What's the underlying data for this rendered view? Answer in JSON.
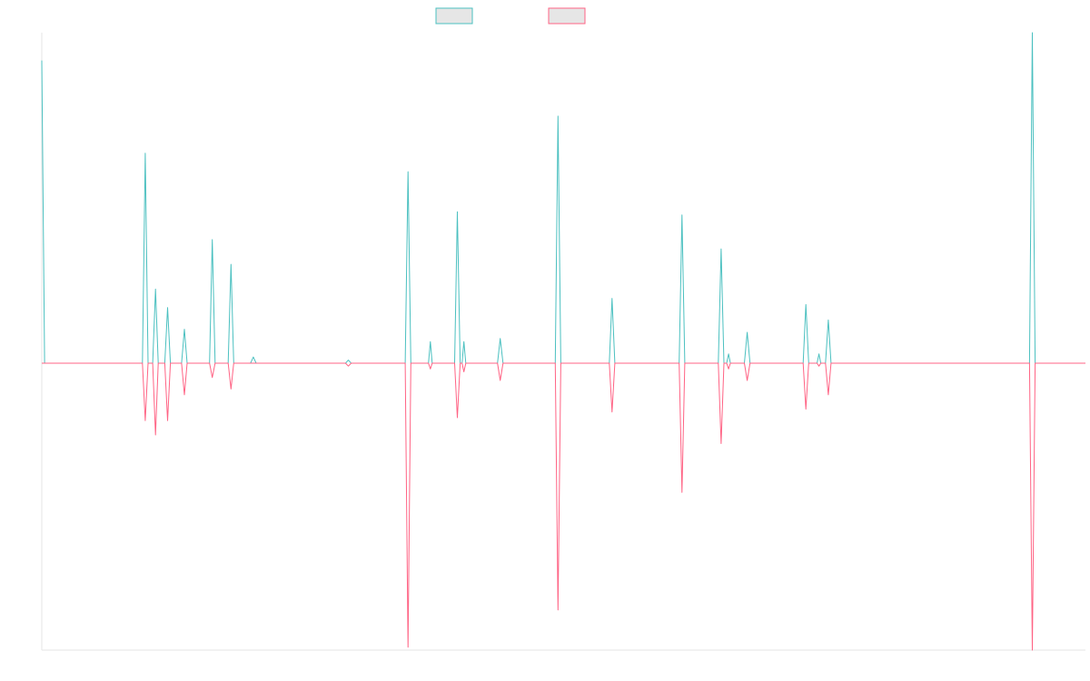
{
  "chart_data": {
    "type": "line",
    "title": "",
    "xlabel": "",
    "ylabel": "",
    "x_range": [
      0,
      112
    ],
    "ylim": [
      -1,
      1.07
    ],
    "grid": false,
    "legend_position": "top-center",
    "series": [
      {
        "name": "",
        "color": "#4bc0c0",
        "x": [
          0,
          0.3,
          10.8,
          11.1,
          11.4,
          11.9,
          12.2,
          12.5,
          13.2,
          13.5,
          13.8,
          15.0,
          15.3,
          15.6,
          18.0,
          18.3,
          18.6,
          20.0,
          20.3,
          20.6,
          22.4,
          22.7,
          23.0,
          32.6,
          32.9,
          33.2,
          39.0,
          39.3,
          39.6,
          41.5,
          41.7,
          41.9,
          44.3,
          44.6,
          44.9,
          45.1,
          45.3,
          45.5,
          48.9,
          49.2,
          49.5,
          55.1,
          55.4,
          55.7,
          60.9,
          61.2,
          61.5,
          68.4,
          68.7,
          69.0,
          72.6,
          72.9,
          73.2,
          73.5,
          73.7,
          73.9,
          75.4,
          75.7,
          76.0,
          81.7,
          82.0,
          82.3,
          83.2,
          83.4,
          83.6,
          84.1,
          84.4,
          84.7,
          106.0,
          106.3,
          106.6,
          112
        ],
        "values": [
          0.98,
          0,
          0,
          0.68,
          0,
          0,
          0.24,
          0,
          0,
          0.18,
          0,
          0,
          0.11,
          0,
          0,
          0.4,
          0,
          0,
          0.32,
          0,
          0,
          0.02,
          0,
          0,
          0.01,
          0,
          0,
          0.62,
          0,
          0,
          0.07,
          0,
          0,
          0.49,
          0,
          0,
          0.07,
          0,
          0,
          0.08,
          0,
          0,
          0.8,
          0,
          0,
          0.21,
          0,
          0,
          0.48,
          0,
          0,
          0.37,
          0,
          0,
          0.03,
          0,
          0,
          0.1,
          0,
          0,
          0.19,
          0,
          0,
          0.03,
          0,
          0,
          0.14,
          0,
          0,
          1.07,
          0,
          0
        ]
      },
      {
        "name": "",
        "color": "#ff6384",
        "x": [
          0,
          10.8,
          11.1,
          11.4,
          11.9,
          12.2,
          12.5,
          13.2,
          13.5,
          13.8,
          15.0,
          15.3,
          15.6,
          18.0,
          18.3,
          18.6,
          20.0,
          20.3,
          20.6,
          32.6,
          32.9,
          33.2,
          39.0,
          39.3,
          39.6,
          41.5,
          41.7,
          41.9,
          44.3,
          44.6,
          44.9,
          45.1,
          45.3,
          45.5,
          48.9,
          49.2,
          49.5,
          55.1,
          55.4,
          55.7,
          60.9,
          61.2,
          61.5,
          68.4,
          68.7,
          69.0,
          72.6,
          72.9,
          73.2,
          73.5,
          73.7,
          73.9,
          75.4,
          75.7,
          76.0,
          81.7,
          82.0,
          82.3,
          83.2,
          83.4,
          83.6,
          84.1,
          84.4,
          84.7,
          106.0,
          106.3,
          106.6,
          112
        ],
        "values": [
          0,
          0,
          -0.2,
          0,
          0,
          -0.25,
          0,
          0,
          -0.2,
          0,
          0,
          -0.11,
          0,
          0,
          -0.05,
          0,
          0,
          -0.09,
          0,
          0,
          -0.01,
          0,
          0,
          -0.99,
          0,
          0,
          -0.02,
          0,
          0,
          -0.19,
          0,
          0,
          -0.03,
          0,
          0,
          -0.06,
          0,
          0,
          -0.86,
          0,
          0,
          -0.17,
          0,
          0,
          -0.45,
          0,
          0,
          -0.28,
          0,
          0,
          -0.02,
          0,
          0,
          -0.06,
          0,
          0,
          -0.16,
          0,
          0,
          -0.01,
          0,
          0,
          -0.11,
          0,
          0,
          -1.0,
          0,
          0
        ]
      }
    ]
  }
}
